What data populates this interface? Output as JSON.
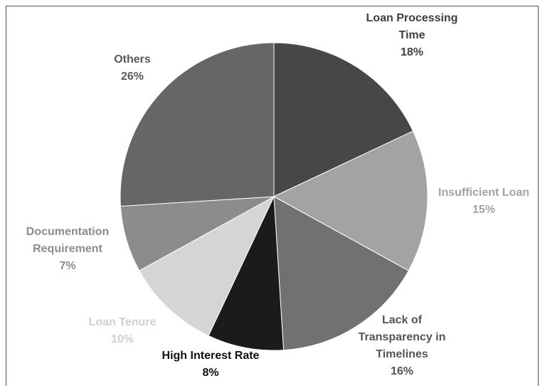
{
  "chart_data": {
    "type": "pie",
    "categories": [
      "Loan Processing Time",
      "Insufficient Loan",
      "Lack of Transparency in Timelines",
      "High Interest Rate",
      "Loan Tenure",
      "Documentation Requirement",
      "Others"
    ],
    "values": [
      18,
      15,
      16,
      8,
      10,
      7,
      26
    ],
    "value_labels": [
      "18%",
      "15%",
      "16%",
      "8%",
      "10%",
      "7%",
      "26%"
    ],
    "colors": [
      "#474747",
      "#a3a3a3",
      "#717171",
      "#1b1b1b",
      "#d5d5d5",
      "#8c8c8c",
      "#666666"
    ],
    "label_colors": [
      "#3f3f3f",
      "#a3a3a3",
      "#555555",
      "#111111",
      "#d0d0d0",
      "#8c8c8c",
      "#595959"
    ]
  }
}
